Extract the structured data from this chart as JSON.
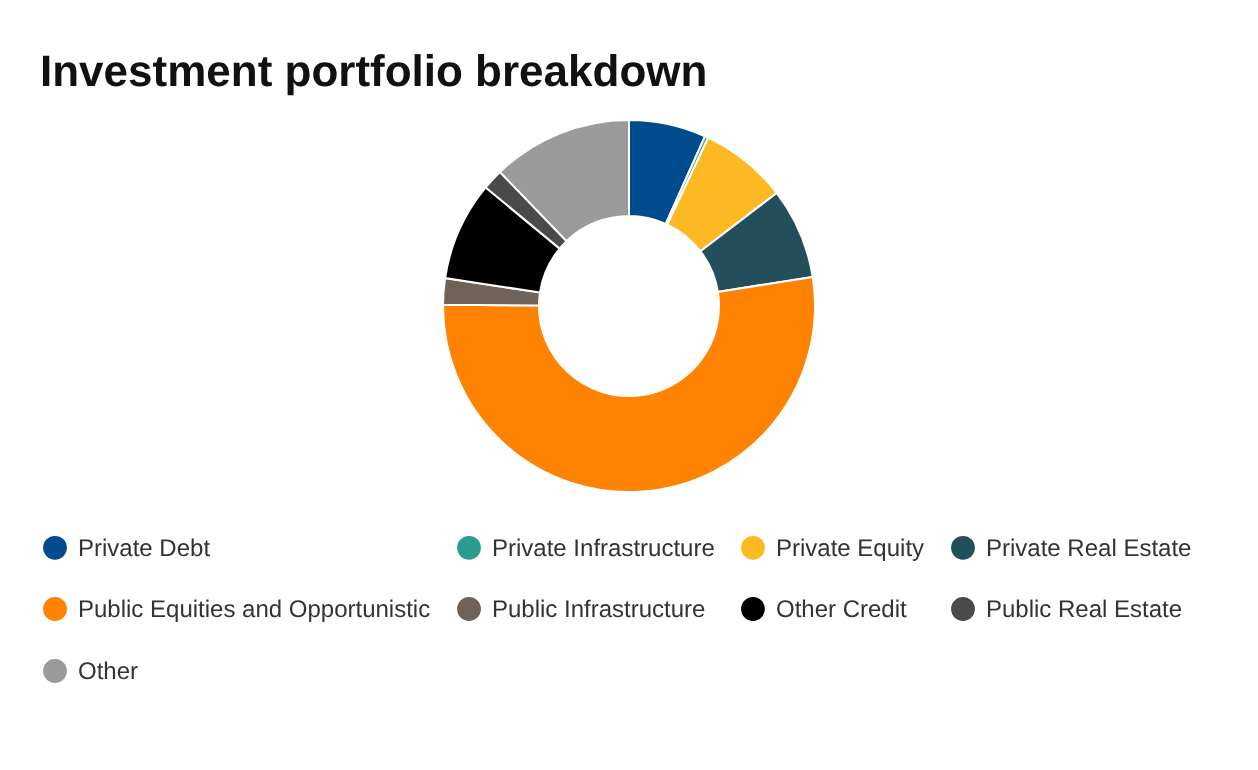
{
  "chart_data": {
    "type": "donut",
    "title": "Investment portfolio breakdown",
    "categories": [
      "Private Debt",
      "Private Infrastructure",
      "Private Equity",
      "Private Real Estate",
      "Public Equities and Opportunistic",
      "Public Infrastructure",
      "Other Credit",
      "Public Real Estate",
      "Other"
    ],
    "values": [
      6.7,
      0.3,
      7.6,
      7.9,
      52.6,
      2.3,
      8.6,
      1.8,
      12.2
    ],
    "colors": [
      "#004b8d",
      "#2a9d8f",
      "#fdb924",
      "#234e5c",
      "#ff8200",
      "#6e6259",
      "#000000",
      "#4a4a4a",
      "#9b9b9b"
    ],
    "legend": "bottom"
  }
}
